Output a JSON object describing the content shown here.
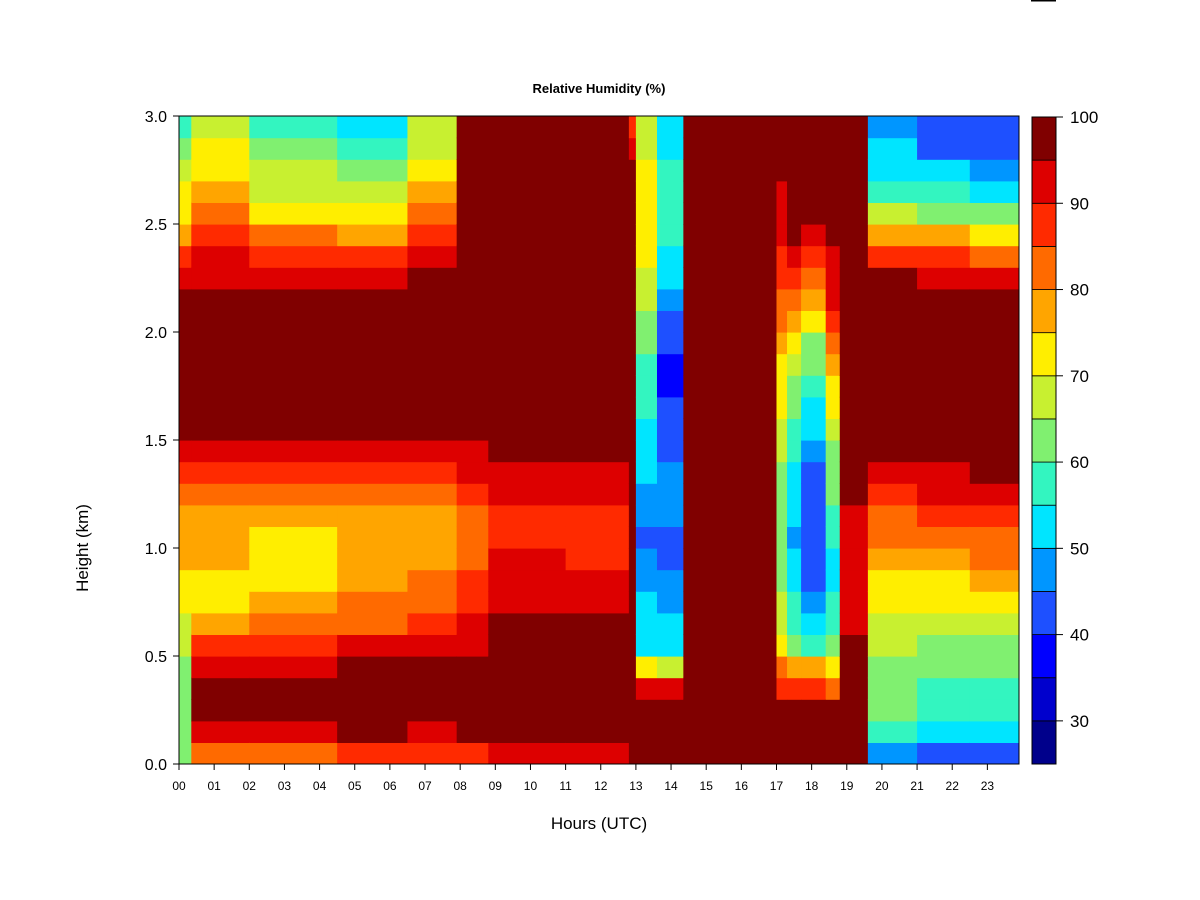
{
  "chart_data": {
    "type": "heatmap",
    "title": "Relative Humidity (%)",
    "xlabel": "Hours (UTC)",
    "ylabel": "Height (km)",
    "x_tick_labels": [
      "00",
      "01",
      "02",
      "03",
      "04",
      "05",
      "06",
      "07",
      "08",
      "09",
      "10",
      "11",
      "12",
      "13",
      "14",
      "15",
      "16",
      "17",
      "18",
      "19",
      "20",
      "21",
      "22",
      "23"
    ],
    "y_tick_labels": [
      "0.0",
      "0.5",
      "1.0",
      "1.5",
      "2.0",
      "2.5",
      "3.0"
    ],
    "xlim": [
      0,
      23.9
    ],
    "ylim": [
      0,
      3.0
    ],
    "colorbar": {
      "levels": [
        25,
        30,
        35,
        40,
        45,
        50,
        55,
        60,
        65,
        70,
        75,
        80,
        85,
        90,
        95,
        100
      ],
      "tick_labels": [
        "30",
        "40",
        "50",
        "60",
        "70",
        "80",
        "90",
        "100"
      ],
      "colors": [
        "#00008b",
        "#0000cd",
        "#0000ff",
        "#1e50ff",
        "#0096ff",
        "#00e5ff",
        "#33f5c0",
        "#80f070",
        "#c8f030",
        "#ffee00",
        "#ffa500",
        "#ff6a00",
        "#ff2a00",
        "#dd0000",
        "#800000"
      ]
    },
    "height_levels_km": [
      0.05,
      0.15,
      0.25,
      0.35,
      0.45,
      0.55,
      0.65,
      0.75,
      0.85,
      0.95,
      1.05,
      1.15,
      1.25,
      1.35,
      1.45,
      1.55,
      1.65,
      1.75,
      1.85,
      1.95,
      2.05,
      2.15,
      2.25,
      2.35,
      2.45,
      2.55,
      2.65,
      2.75,
      2.85,
      2.95
    ],
    "time_segments": [
      {
        "start": 0.0,
        "end": 0.35,
        "rh": [
          62,
          62,
          60,
          60,
          62,
          65,
          68,
          70,
          72,
          75,
          75,
          78,
          80,
          85,
          90,
          95,
          97,
          98,
          99,
          99,
          99,
          98,
          92,
          85,
          78,
          72,
          70,
          68,
          60,
          58
        ]
      },
      {
        "start": 0.35,
        "end": 2.0,
        "rh": [
          80,
          92,
          96,
          95,
          93,
          85,
          76,
          74,
          74,
          75,
          76,
          78,
          82,
          88,
          92,
          96,
          98,
          99,
          99,
          99,
          99,
          98,
          94,
          90,
          85,
          80,
          75,
          72,
          70,
          68
        ]
      },
      {
        "start": 2.0,
        "end": 4.5,
        "rh": [
          82,
          94,
          97,
          96,
          94,
          88,
          80,
          76,
          74,
          73,
          74,
          76,
          82,
          88,
          93,
          97,
          99,
          99,
          99,
          99,
          99,
          98,
          94,
          88,
          80,
          74,
          68,
          66,
          60,
          56
        ]
      },
      {
        "start": 4.5,
        "end": 6.5,
        "rh": [
          85,
          95,
          98,
          98,
          97,
          92,
          84,
          80,
          77,
          75,
          75,
          77,
          82,
          88,
          92,
          96,
          99,
          99,
          99,
          99,
          99,
          98,
          94,
          88,
          78,
          72,
          66,
          64,
          58,
          52
        ]
      },
      {
        "start": 6.5,
        "end": 7.9,
        "rh": [
          85,
          94,
          97,
          97,
          95,
          92,
          86,
          82,
          80,
          78,
          77,
          78,
          83,
          88,
          92,
          96,
          99,
          99,
          99,
          99,
          99,
          98,
          96,
          92,
          86,
          80,
          75,
          70,
          68,
          66
        ]
      },
      {
        "start": 7.9,
        "end": 8.8,
        "rh": [
          88,
          95,
          97,
          97,
          95,
          93,
          90,
          88,
          86,
          84,
          82,
          83,
          86,
          90,
          94,
          97,
          99,
          99,
          99,
          99,
          100,
          100,
          100,
          100,
          100,
          100,
          100,
          100,
          100,
          100
        ]
      },
      {
        "start": 8.8,
        "end": 11.0,
        "rh": [
          92,
          99,
          100,
          100,
          100,
          99,
          96,
          93,
          92,
          90,
          88,
          89,
          91,
          94,
          96,
          98,
          99,
          99,
          99,
          100,
          100,
          100,
          100,
          100,
          100,
          100,
          100,
          100,
          100,
          100
        ]
      },
      {
        "start": 11.0,
        "end": 12.8,
        "rh": [
          92,
          99,
          100,
          100,
          100,
          98,
          95,
          92,
          90,
          88,
          86,
          88,
          91,
          94,
          96,
          98,
          99,
          99,
          99,
          100,
          100,
          100,
          100,
          100,
          100,
          100,
          100,
          100,
          100,
          100
        ]
      },
      {
        "start": 12.8,
        "end": 13.0,
        "rh": [
          100,
          100,
          100,
          100,
          100,
          100,
          100,
          100,
          100,
          100,
          100,
          100,
          100,
          100,
          100,
          100,
          100,
          100,
          100,
          100,
          100,
          100,
          100,
          100,
          100,
          100,
          100,
          100,
          92,
          88
        ]
      },
      {
        "start": 13.0,
        "end": 13.6,
        "rh": [
          100,
          100,
          96,
          90,
          74,
          54,
          52,
          50,
          48,
          46,
          44,
          46,
          48,
          50,
          52,
          53,
          55,
          56,
          58,
          60,
          62,
          65,
          68,
          70,
          72,
          74,
          72,
          70,
          68,
          66
        ]
      },
      {
        "start": 13.6,
        "end": 14.35,
        "rh": [
          100,
          100,
          98,
          90,
          68,
          52,
          50,
          48,
          46,
          44,
          44,
          46,
          48,
          46,
          44,
          42,
          40,
          38,
          38,
          40,
          44,
          48,
          52,
          54,
          55,
          56,
          56,
          55,
          54,
          54
        ]
      },
      {
        "start": 14.35,
        "end": 17.0,
        "rh": [
          100,
          100,
          100,
          100,
          100,
          100,
          100,
          99,
          99,
          100,
          100,
          100,
          100,
          100,
          100,
          100,
          100,
          100,
          100,
          100,
          100,
          100,
          100,
          100,
          100,
          100,
          100,
          100,
          100,
          100
        ]
      },
      {
        "start": 17.0,
        "end": 17.3,
        "rh": [
          99,
          99,
          99,
          88,
          80,
          72,
          68,
          66,
          64,
          62,
          60,
          60,
          62,
          64,
          66,
          68,
          70,
          72,
          74,
          76,
          80,
          84,
          86,
          88,
          90,
          92,
          94,
          96,
          98,
          99
        ]
      },
      {
        "start": 17.3,
        "end": 17.7,
        "rh": [
          99,
          99,
          99,
          88,
          76,
          62,
          58,
          55,
          52,
          50,
          48,
          50,
          52,
          54,
          56,
          58,
          60,
          62,
          66,
          70,
          76,
          82,
          88,
          94,
          97,
          99,
          99,
          99,
          99,
          99
        ]
      },
      {
        "start": 17.7,
        "end": 18.4,
        "rh": [
          99,
          99,
          99,
          86,
          75,
          58,
          52,
          48,
          44,
          42,
          40,
          40,
          42,
          44,
          48,
          52,
          54,
          56,
          60,
          64,
          70,
          76,
          82,
          88,
          94,
          98,
          99,
          99,
          99,
          99
        ]
      },
      {
        "start": 18.4,
        "end": 18.8,
        "rh": [
          99,
          99,
          96,
          84,
          72,
          62,
          58,
          56,
          54,
          54,
          56,
          58,
          60,
          62,
          64,
          66,
          70,
          74,
          78,
          82,
          86,
          90,
          92,
          94,
          96,
          98,
          98,
          98,
          98,
          98
        ]
      },
      {
        "start": 18.8,
        "end": 19.6,
        "rh": [
          96,
          99,
          99,
          99,
          98,
          96,
          94,
          92,
          90,
          90,
          91,
          93,
          95,
          97,
          98,
          99,
          99,
          99,
          99,
          99,
          99,
          99,
          99,
          99,
          99,
          99,
          99,
          99,
          99,
          99
        ]
      },
      {
        "start": 19.6,
        "end": 21.0,
        "rh": [
          48,
          55,
          60,
          62,
          64,
          66,
          68,
          70,
          74,
          78,
          80,
          84,
          88,
          92,
          96,
          98,
          99,
          99,
          99,
          99,
          99,
          98,
          95,
          88,
          78,
          66,
          58,
          54,
          50,
          46
        ]
      },
      {
        "start": 21.0,
        "end": 22.5,
        "rh": [
          42,
          50,
          56,
          58,
          60,
          62,
          66,
          70,
          74,
          78,
          82,
          86,
          90,
          93,
          96,
          98,
          99,
          99,
          99,
          99,
          99,
          98,
          94,
          86,
          76,
          64,
          56,
          50,
          44,
          40
        ]
      },
      {
        "start": 22.5,
        "end": 23.9,
        "rh": [
          42,
          50,
          56,
          58,
          60,
          62,
          66,
          70,
          76,
          80,
          84,
          88,
          92,
          95,
          97,
          99,
          99,
          99,
          99,
          99,
          99,
          98,
          94,
          84,
          72,
          60,
          52,
          46,
          42,
          40
        ]
      }
    ]
  }
}
